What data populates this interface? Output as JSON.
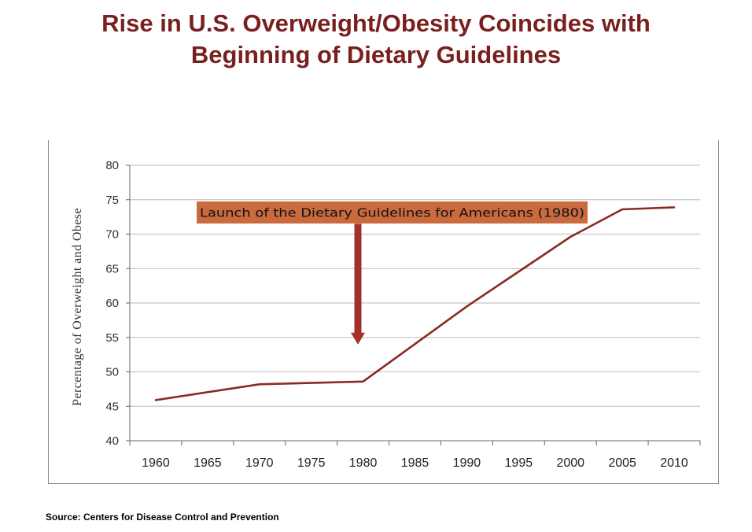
{
  "title_line1": "Rise in U.S. Overweight/Obesity Coincides with",
  "title_line2": "Beginning of Dietary Guidelines",
  "source": "Source: Centers for Disease Control and Prevention",
  "colors": {
    "title": "#7a1f1f",
    "line": "#8b2a24",
    "arrow": "#a3302a",
    "callout_bg": "#c96a3f",
    "grid": "#c8c8c8"
  },
  "chart_data": {
    "type": "line",
    "x": [
      1960,
      1970,
      1980,
      1990,
      2000,
      2005,
      2010
    ],
    "series": [
      {
        "values": [
          45.9,
          48.2,
          48.6,
          59.5,
          69.6,
          73.6,
          73.9
        ]
      }
    ],
    "xlabel": "",
    "ylabel": "Percentage of Overweight and Obese",
    "xlim": [
      1957.5,
      2012.5
    ],
    "ylim": [
      40,
      80
    ],
    "xticks": [
      1960,
      1965,
      1970,
      1975,
      1980,
      1985,
      1990,
      1995,
      2000,
      2005,
      2010
    ],
    "yticks": [
      40,
      45,
      50,
      55,
      60,
      65,
      70,
      75,
      80
    ],
    "grid": true,
    "annotation": {
      "text": "Launch of the Dietary Guidelines for Americans (1980)",
      "arrow_x": 1979.5,
      "arrow_from_y": 71.5,
      "arrow_to_y": 54.2
    }
  }
}
